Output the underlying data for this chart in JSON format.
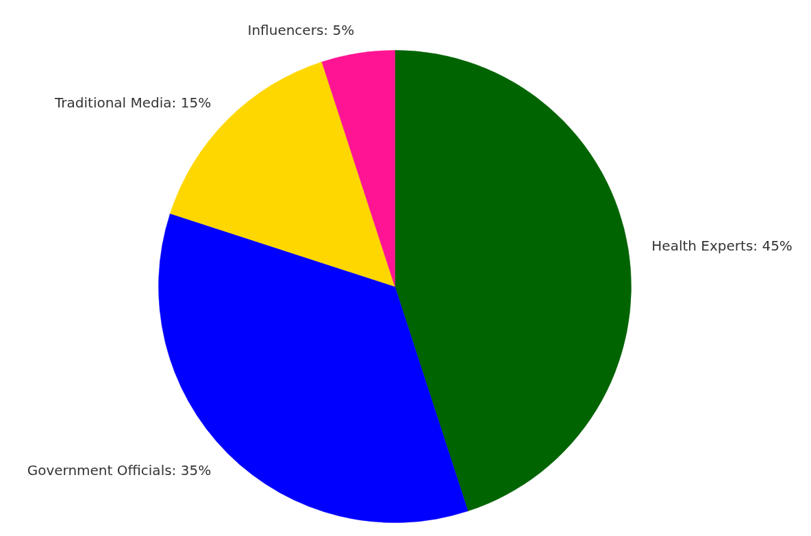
{
  "chart_data": {
    "type": "pie",
    "categories": [
      "Health Experts",
      "Government Officials",
      "Traditional Media",
      "Influencers"
    ],
    "values": [
      45,
      35,
      15,
      5
    ],
    "colors": [
      "#006400",
      "#0000ff",
      "#ffd700",
      "#ff1493"
    ],
    "value_labels": [
      "45%",
      "35%",
      "15%",
      "5%"
    ]
  }
}
